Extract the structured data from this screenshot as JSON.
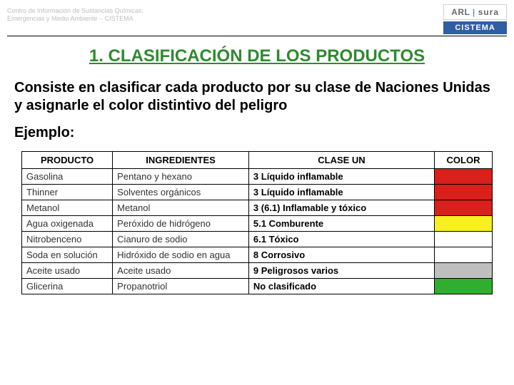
{
  "header": {
    "org_line1": "Centro de Información de Sustancias Químicas,",
    "org_line2": "Emergencias y Medio Ambiente – CISTEMA",
    "logo_top_a": "ARL",
    "logo_top_b": "sura",
    "logo_bottom": "CISTEMA"
  },
  "title": "1. CLASIFICACIÓN DE LOS PRODUCTOS",
  "description": "Consiste en clasificar cada producto por su clase de Naciones Unidas y asignarle el color distintivo del peligro",
  "ejemplo_label": "Ejemplo:",
  "table": {
    "columns": [
      "PRODUCTO",
      "INGREDIENTES",
      "CLASE UN",
      "COLOR"
    ],
    "rows": [
      {
        "producto": "Gasolina",
        "ingredientes": "Pentano y hexano",
        "clase": "3 Líquido inflamable",
        "color": "#d9201a"
      },
      {
        "producto": "Thinner",
        "ingredientes": "Solventes orgánicos",
        "clase": "3 Líquido inflamable",
        "color": "#d9201a"
      },
      {
        "producto": "Metanol",
        "ingredientes": "Metanol",
        "clase": "3 (6.1) Inflamable y tóxico",
        "color": "#d9201a"
      },
      {
        "producto": "Agua oxigenada",
        "ingredientes": "Peróxido de hidrógeno",
        "clase": "5.1 Comburente",
        "color": "#f7ef1f"
      },
      {
        "producto": "Nitrobenceno",
        "ingredientes": "Cianuro de sodio",
        "clase": "6.1 Tóxico",
        "color": "#ffffff"
      },
      {
        "producto": "Soda en solución",
        "ingredientes": "Hidróxido de sodio en agua",
        "clase": "8 Corrosivo",
        "color": "#ffffff"
      },
      {
        "producto": "Aceite usado",
        "ingredientes": "Aceite usado",
        "clase": "9 Peligrosos varios",
        "color": "#bfbfbf"
      },
      {
        "producto": "Glicerina",
        "ingredientes": "Propanotriol",
        "clase": "No clasificado",
        "color": "#2fae2f"
      }
    ]
  }
}
